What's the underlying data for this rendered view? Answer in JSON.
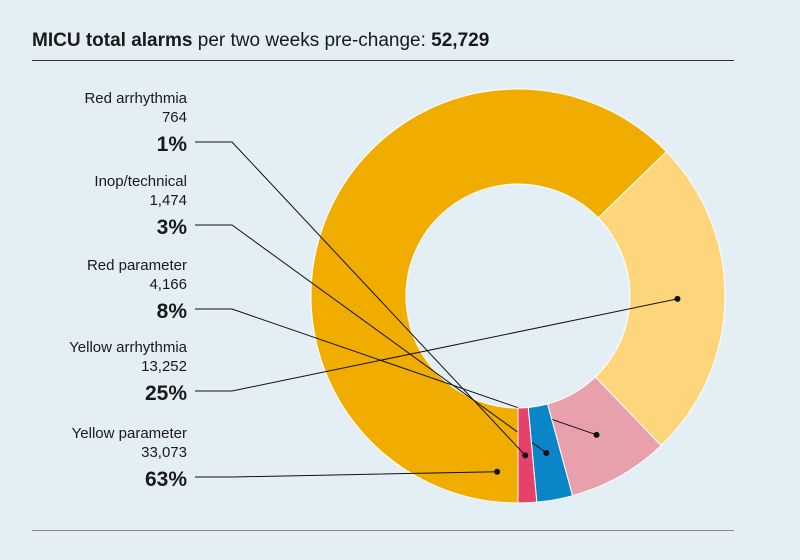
{
  "header": {
    "title_bold": "MICU total alarms",
    "title_rest": " per two weeks pre-change: ",
    "title_total": "52,729"
  },
  "chart_data": {
    "type": "pie",
    "donut": true,
    "total": 52729,
    "slices": [
      {
        "name": "Yellow parameter",
        "count_label": "33,073",
        "value": 33073,
        "pct_label": "63%",
        "color": "#f0ad00"
      },
      {
        "name": "Yellow arrhythmia",
        "count_label": "13,252",
        "value": 13252,
        "pct_label": "25%",
        "color": "#fdd57a"
      },
      {
        "name": "Red parameter",
        "count_label": "4,166",
        "value": 4166,
        "pct_label": "8%",
        "color": "#e9a0ad"
      },
      {
        "name": "Inop/technical",
        "count_label": "1,474",
        "value": 1474,
        "pct_label": "3%",
        "color": "#0a86c8"
      },
      {
        "name": "Red arrhythmia",
        "count_label": "764",
        "value": 764,
        "pct_label": "1%",
        "color": "#e6416a"
      }
    ]
  }
}
